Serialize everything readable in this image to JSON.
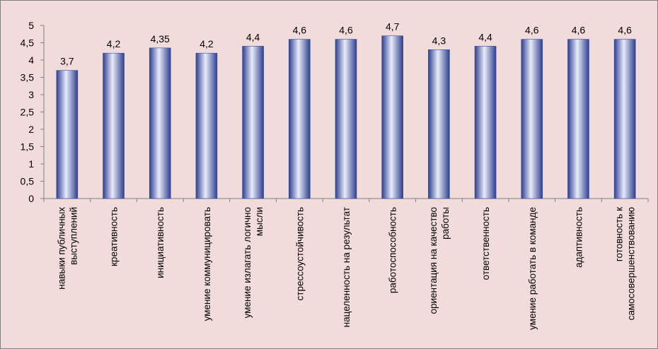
{
  "chart_data": {
    "type": "bar",
    "title": "",
    "xlabel": "",
    "ylabel": "",
    "ylim": [
      0,
      5
    ],
    "yticks": [
      "0",
      "0,5",
      "1",
      "1,5",
      "2",
      "2,5",
      "3",
      "3,5",
      "4",
      "4,5",
      "5"
    ],
    "grid": false,
    "legend": "none",
    "categories": [
      [
        "навыки публичных",
        "выступлений"
      ],
      [
        "креативность"
      ],
      [
        "инициативность"
      ],
      [
        "умение коммуницировать"
      ],
      [
        "умение излагать логично",
        "мысли"
      ],
      [
        "стрессоустойчивость"
      ],
      [
        "нацеленность на результат"
      ],
      [
        "работоспособность"
      ],
      [
        "ориентация на качество",
        "работы"
      ],
      [
        "ответственность"
      ],
      [
        "умение работать в команде"
      ],
      [
        "адаптивность"
      ],
      [
        "готовность к",
        "самосовершенствованию"
      ]
    ],
    "values": [
      3.7,
      4.2,
      4.35,
      4.2,
      4.4,
      4.6,
      4.6,
      4.7,
      4.3,
      4.4,
      4.6,
      4.6,
      4.6
    ],
    "data_labels": [
      "3,7",
      "4,2",
      "4,35",
      "4,2",
      "4,4",
      "4,6",
      "4,6",
      "4,7",
      "4,3",
      "4,4",
      "4,6",
      "4,6",
      "4,6"
    ],
    "colors": {
      "background": "#f2dcdb",
      "bar_dark": "#2e3f8f",
      "bar_light": "#e8ecfa",
      "axis": "#7f7f7f"
    }
  }
}
